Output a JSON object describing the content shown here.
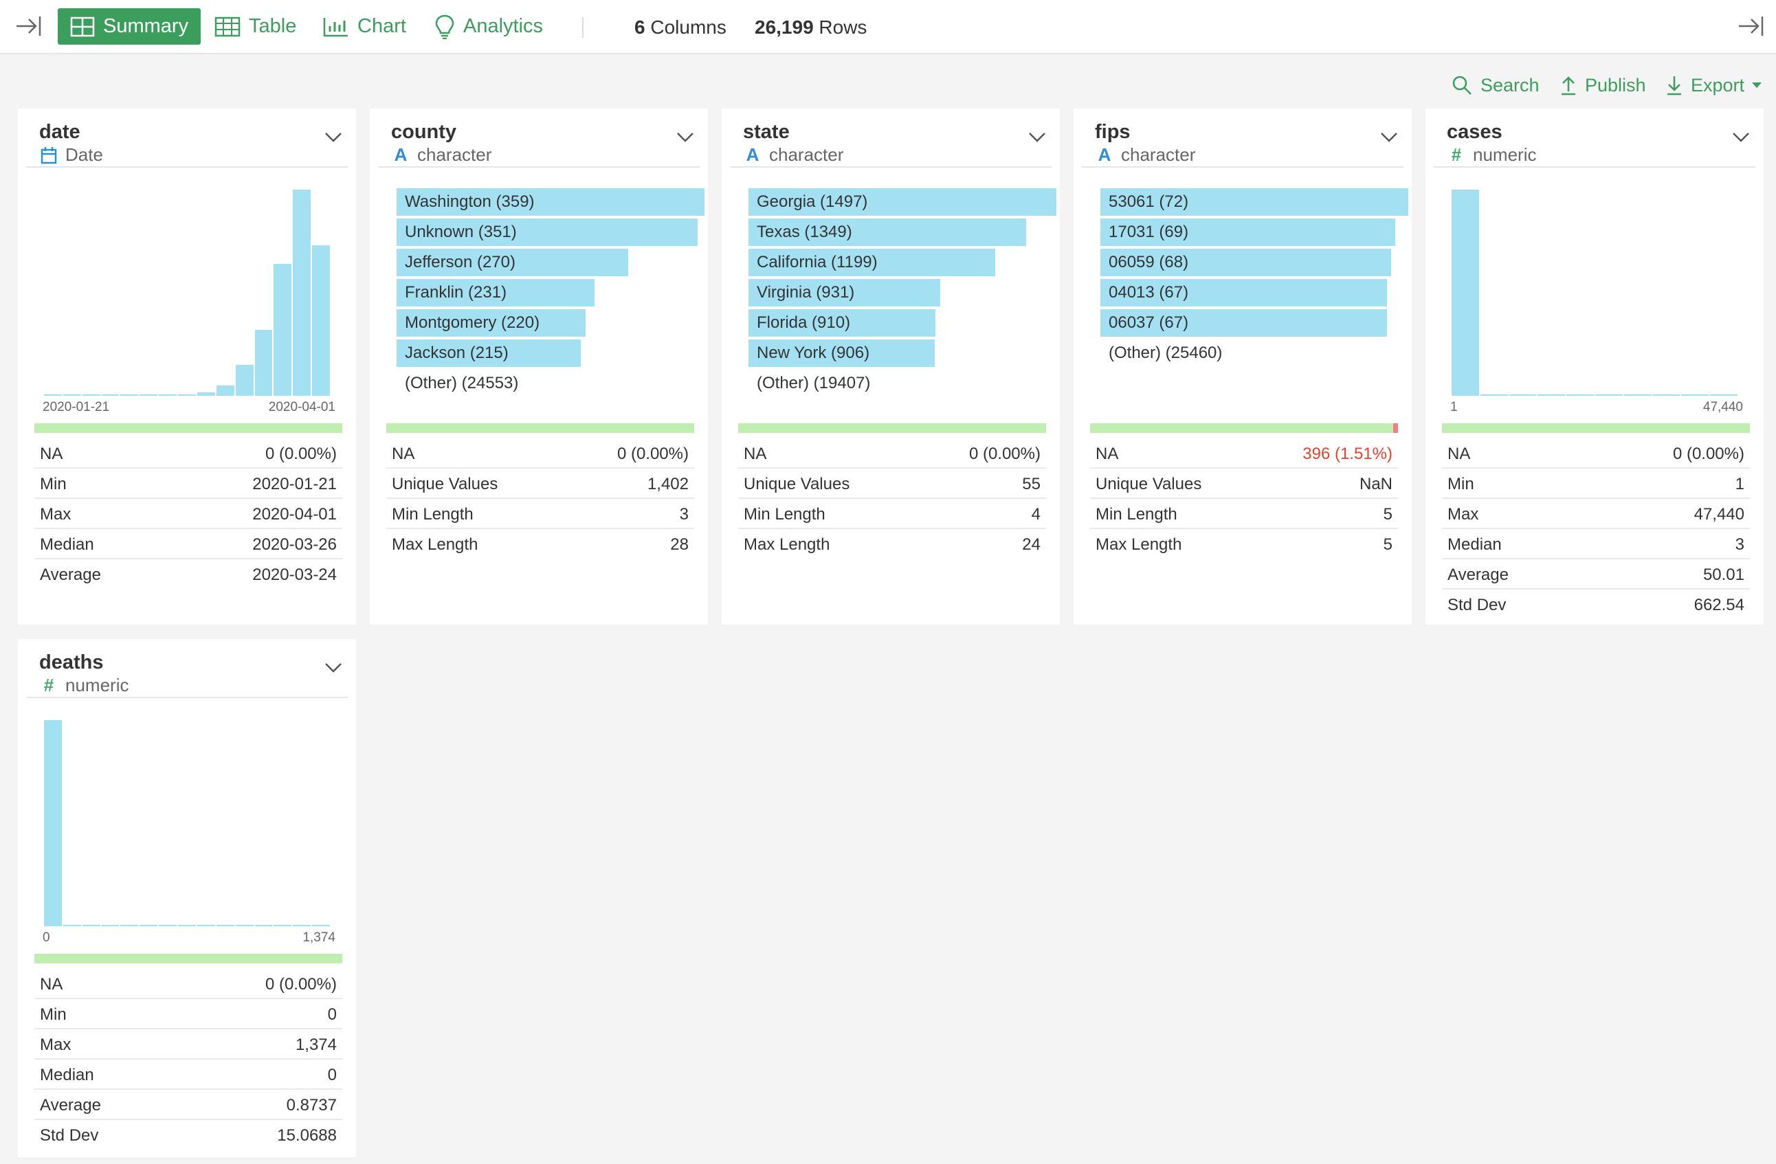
{
  "toolbar": {
    "tabs": [
      {
        "label": "Summary",
        "icon": "summary-grid-icon",
        "active": true
      },
      {
        "label": "Table",
        "icon": "table-icon"
      },
      {
        "label": "Chart",
        "icon": "bar-chart-icon"
      },
      {
        "label": "Analytics",
        "icon": "lightbulb-icon"
      }
    ],
    "columns_count": "6",
    "columns_label": "Columns",
    "rows_count": "26,199",
    "rows_label": "Rows"
  },
  "actions": {
    "search": "Search",
    "publish": "Publish",
    "export": "Export"
  },
  "colors": {
    "accent": "#3c9e5c",
    "bar": "#a3e1f2",
    "quality_ok": "#bfeeb0",
    "quality_na": "#f08080",
    "error_text": "#e0452f"
  },
  "columns": [
    {
      "name": "date",
      "type": "Date",
      "type_icon": "calendar-icon",
      "histogram": {
        "x_min_label": "2020-01-21",
        "x_max_label": "2020-04-01",
        "relative_heights": [
          0.004,
          0.004,
          0.004,
          0.004,
          0.004,
          0.004,
          0.006,
          0.008,
          0.016,
          0.05,
          0.15,
          0.32,
          0.64,
          1.0,
          0.73
        ]
      },
      "na_fraction": 0,
      "stats": [
        {
          "label": "NA",
          "value": "0 (0.00%)"
        },
        {
          "label": "Min",
          "value": "2020-01-21"
        },
        {
          "label": "Max",
          "value": "2020-04-01"
        },
        {
          "label": "Median",
          "value": "2020-03-26"
        },
        {
          "label": "Average",
          "value": "2020-03-24"
        }
      ]
    },
    {
      "name": "county",
      "type": "character",
      "type_icon": "text-A-icon",
      "categories": [
        {
          "label": "Washington (359)",
          "fraction": 1.0
        },
        {
          "label": "Unknown (351)",
          "fraction": 0.978
        },
        {
          "label": "Jefferson (270)",
          "fraction": 0.752
        },
        {
          "label": "Franklin (231)",
          "fraction": 0.643
        },
        {
          "label": "Montgomery (220)",
          "fraction": 0.613
        },
        {
          "label": "Jackson (215)",
          "fraction": 0.599
        },
        {
          "label": "(Other) (24553)",
          "fraction": 0
        }
      ],
      "na_fraction": 0,
      "stats": [
        {
          "label": "NA",
          "value": "0 (0.00%)"
        },
        {
          "label": "Unique Values",
          "value": "1,402"
        },
        {
          "label": "Min Length",
          "value": "3"
        },
        {
          "label": "Max Length",
          "value": "28"
        }
      ]
    },
    {
      "name": "state",
      "type": "character",
      "type_icon": "text-A-icon",
      "categories": [
        {
          "label": "Georgia (1497)",
          "fraction": 1.0
        },
        {
          "label": "Texas (1349)",
          "fraction": 0.901
        },
        {
          "label": "California (1199)",
          "fraction": 0.801
        },
        {
          "label": "Virginia (931)",
          "fraction": 0.622
        },
        {
          "label": "Florida (910)",
          "fraction": 0.608
        },
        {
          "label": "New York (906)",
          "fraction": 0.605
        },
        {
          "label": "(Other) (19407)",
          "fraction": 0
        }
      ],
      "na_fraction": 0,
      "stats": [
        {
          "label": "NA",
          "value": "0 (0.00%)"
        },
        {
          "label": "Unique Values",
          "value": "55"
        },
        {
          "label": "Min Length",
          "value": "4"
        },
        {
          "label": "Max Length",
          "value": "24"
        }
      ]
    },
    {
      "name": "fips",
      "type": "character",
      "type_icon": "text-A-icon",
      "categories": [
        {
          "label": "53061 (72)",
          "fraction": 1.0
        },
        {
          "label": "17031 (69)",
          "fraction": 0.958
        },
        {
          "label": "06059 (68)",
          "fraction": 0.944
        },
        {
          "label": "04013 (67)",
          "fraction": 0.931
        },
        {
          "label": "06037 (67)",
          "fraction": 0.931
        },
        {
          "label": "(Other) (25460)",
          "fraction": 0
        }
      ],
      "na_fraction": 0.0151,
      "stats": [
        {
          "label": "NA",
          "value": "396 (1.51%)",
          "error": true
        },
        {
          "label": "Unique Values",
          "value": "NaN"
        },
        {
          "label": "Min Length",
          "value": "5"
        },
        {
          "label": "Max Length",
          "value": "5"
        }
      ]
    },
    {
      "name": "cases",
      "type": "numeric",
      "type_icon": "hash-icon",
      "histogram": {
        "x_min_label": "1",
        "x_max_label": "47,440",
        "relative_heights": [
          1.0,
          0.004,
          0.004,
          0.004,
          0.004,
          0.004,
          0.004,
          0.004,
          0.004,
          0.004
        ]
      },
      "na_fraction": 0,
      "stats": [
        {
          "label": "NA",
          "value": "0 (0.00%)"
        },
        {
          "label": "Min",
          "value": "1"
        },
        {
          "label": "Max",
          "value": "47,440"
        },
        {
          "label": "Median",
          "value": "3"
        },
        {
          "label": "Average",
          "value": "50.01"
        },
        {
          "label": "Std Dev",
          "value": "662.54"
        }
      ]
    },
    {
      "name": "deaths",
      "type": "numeric",
      "type_icon": "hash-icon",
      "histogram": {
        "x_min_label": "0",
        "x_max_label": "1,374",
        "relative_heights": [
          1.0,
          0.004,
          0.004,
          0.004,
          0.004,
          0.004,
          0.004,
          0.004,
          0.004,
          0.004,
          0.004,
          0.004,
          0.004,
          0.004,
          0.004
        ]
      },
      "na_fraction": 0,
      "stats": [
        {
          "label": "NA",
          "value": "0 (0.00%)"
        },
        {
          "label": "Min",
          "value": "0"
        },
        {
          "label": "Max",
          "value": "1,374"
        },
        {
          "label": "Median",
          "value": "0"
        },
        {
          "label": "Average",
          "value": "0.8737"
        },
        {
          "label": "Std Dev",
          "value": "15.0688"
        }
      ]
    }
  ]
}
